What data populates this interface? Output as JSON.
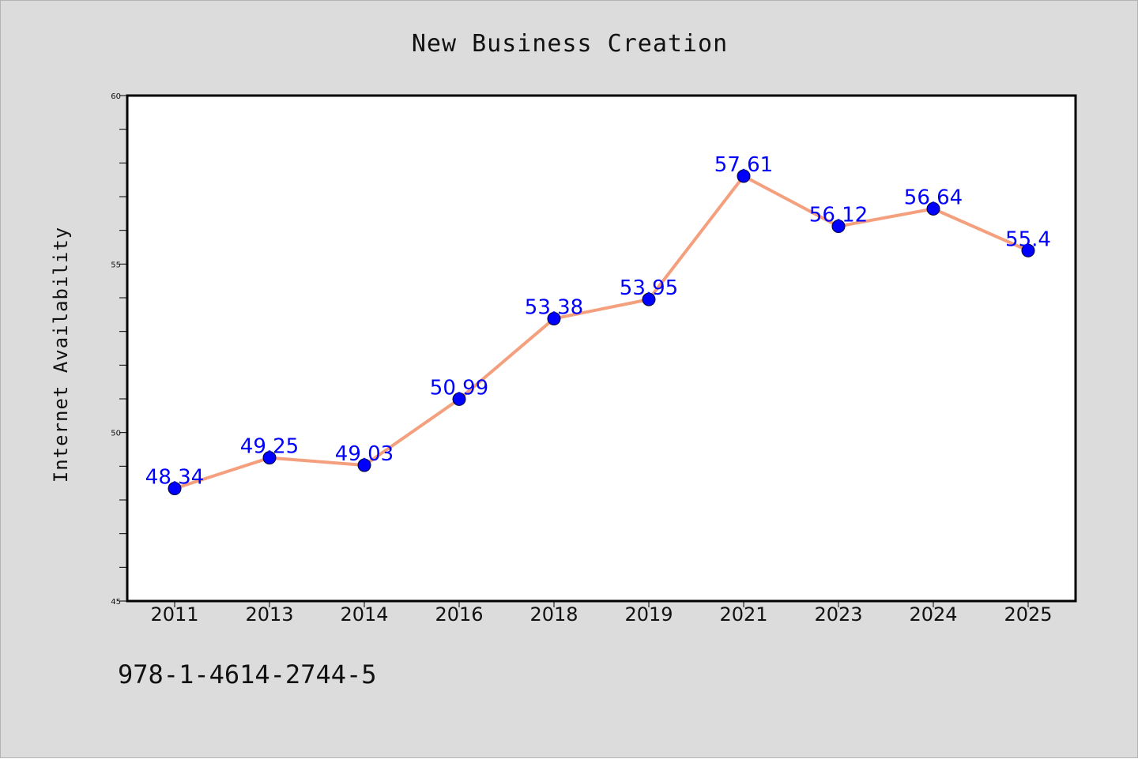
{
  "colors": {
    "figure_background": "#dcdcdc",
    "plot_background": "#ffffff",
    "line": "#f4a07e",
    "marker": "#0000ff",
    "data_label": "#0000ff",
    "axis": "#000000"
  },
  "footnote": "978-1-4614-2744-5",
  "chart_data": {
    "type": "line",
    "title": "New Business Creation",
    "xlabel": "",
    "ylabel": "Internet Availability",
    "categories": [
      "2011",
      "2013",
      "2014",
      "2016",
      "2018",
      "2019",
      "2021",
      "2023",
      "2024",
      "2025"
    ],
    "series": [
      {
        "values": [
          48.34,
          49.25,
          49.03,
          50.99,
          53.38,
          53.95,
          57.61,
          56.12,
          56.64,
          55.4
        ],
        "data_labels": [
          "48.34",
          "49.25",
          "49.03",
          "50.99",
          "53.38",
          "53.95",
          "57.61",
          "56.12",
          "56.64",
          "55.4"
        ]
      }
    ],
    "ylim": [
      45,
      60
    ],
    "yticks": [
      45,
      50,
      55,
      60
    ],
    "y_minor_step": 1,
    "grid": false,
    "legend": "none",
    "marker": "filled-circle"
  }
}
